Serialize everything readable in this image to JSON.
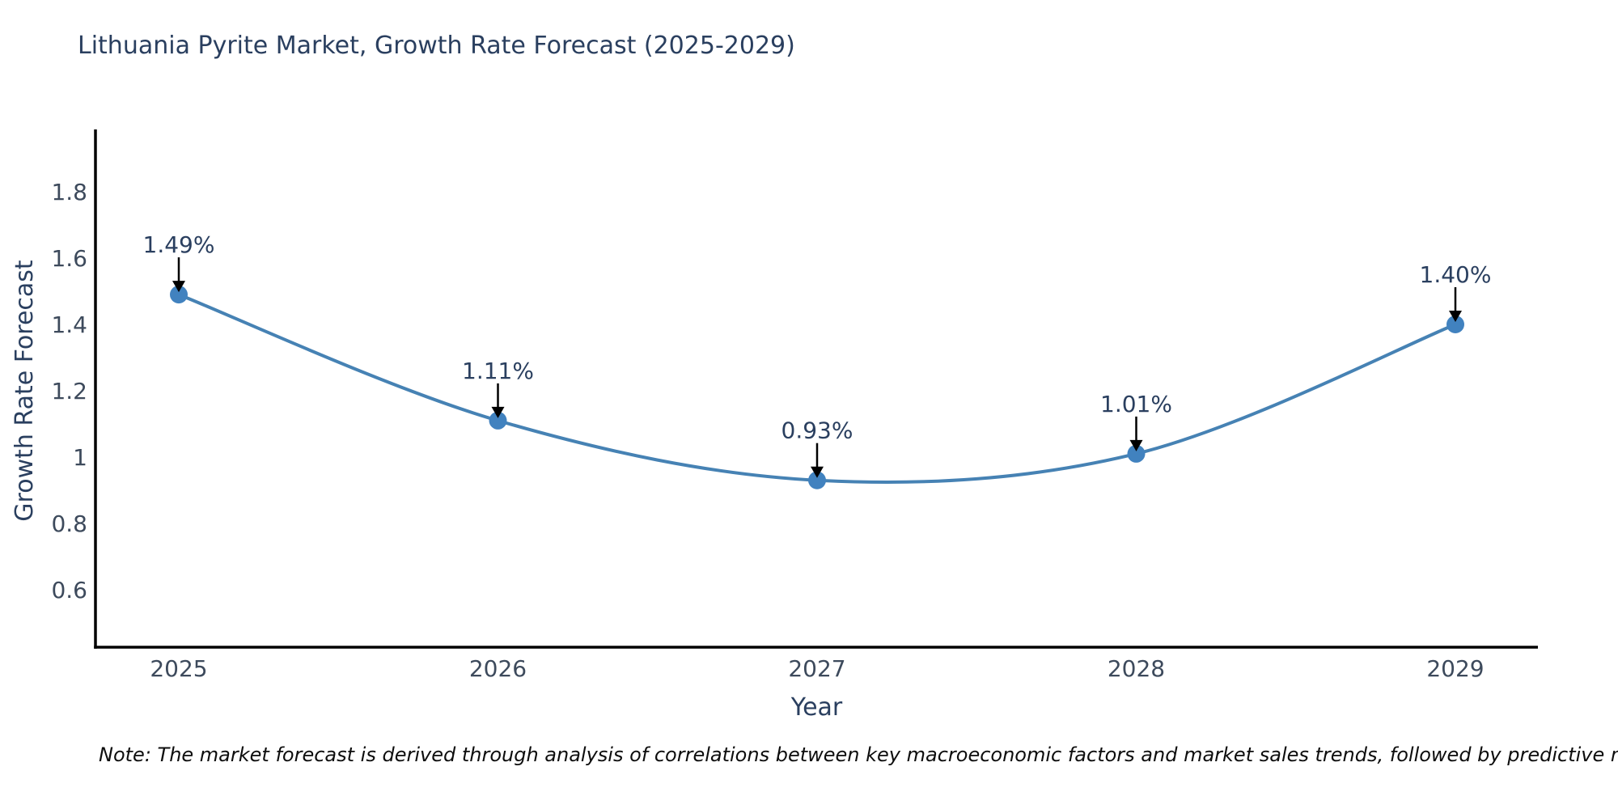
{
  "page": {
    "note": "Note: The market forecast is derived through analysis of correlations between key macroeconomic factors and market sales trends, followed by predictive modeling to project future sales"
  },
  "chart_data": {
    "type": "line",
    "title": "Lithuania Pyrite Market, Growth Rate Forecast (2025-2029)",
    "xlabel": "Year",
    "ylabel": "Growth Rate Forecast",
    "categories": [
      "2025",
      "2026",
      "2027",
      "2028",
      "2029"
    ],
    "values": [
      1.49,
      1.11,
      0.93,
      1.01,
      1.4
    ],
    "point_labels": [
      "1.49%",
      "1.11%",
      "0.93%",
      "1.01%",
      "1.40%"
    ],
    "ytick_values": [
      1.8,
      1.6,
      1.4,
      1.2,
      1.0,
      0.8,
      0.6
    ],
    "ytick_labels": [
      "1.8",
      "1.6",
      "1.4",
      "1.2",
      "1",
      "0.8",
      "0.6"
    ],
    "ylim": [
      0.43,
      1.99
    ],
    "grid": false,
    "legend_position": "none",
    "marker_style": "circle",
    "annotation_arrows": true,
    "colors": {
      "line": "#4682b4",
      "marker": "#4182bf",
      "title_text": "#2a3f5f",
      "axis_text": "#3d4a5c",
      "annotation_text": "#2a3f5f",
      "arrow": "#000000",
      "axis_line": "#000000",
      "note_text": "#0d0d0d",
      "background": "#ffffff"
    }
  }
}
